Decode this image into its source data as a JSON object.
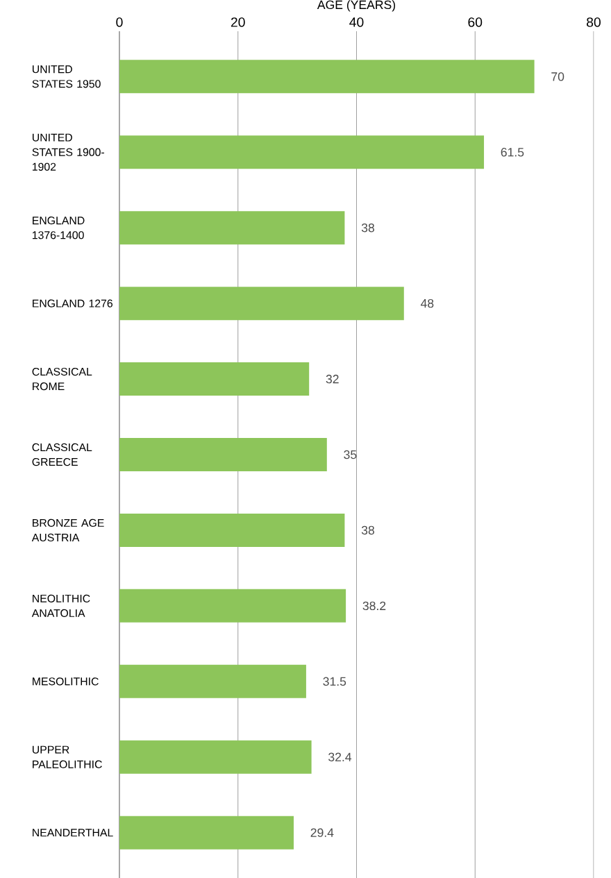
{
  "chart_data": {
    "type": "bar",
    "orientation": "horizontal",
    "xlabel": "AGE (YEARS)",
    "categories": [
      "UNITED STATES 1950",
      "UNITED STATES 1900-1902",
      "ENGLAND 1376-1400",
      "ENGLAND 1276",
      "CLASSICAL ROME",
      "CLASSICAL GREECE",
      "BRONZE AGE AUSTRIA",
      "NEOLITHIC ANATOLIA",
      "MESOLITHIC",
      "UPPER PALEOLITHIC",
      "NEANDERTHAL"
    ],
    "values": [
      70,
      61.5,
      38,
      48,
      32,
      35,
      38,
      38.2,
      31.5,
      32.4,
      29.4
    ],
    "color": "#8dc55a",
    "xlim": [
      0,
      80
    ],
    "xticks": [
      0,
      20,
      40,
      60,
      80
    ],
    "grid": "x",
    "data_labels": true
  }
}
